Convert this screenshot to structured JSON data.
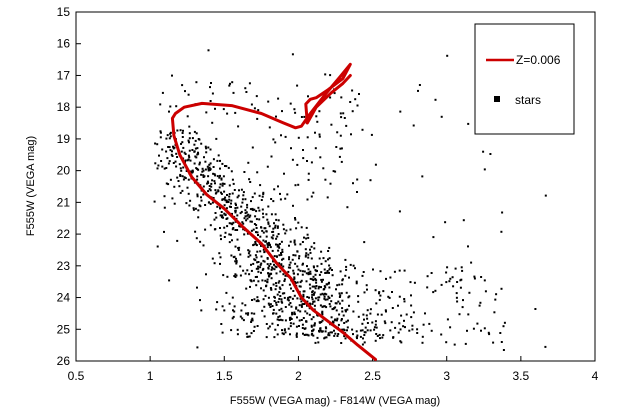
{
  "chart_data": {
    "type": "scatter",
    "xlabel": "F555W (VEGA mag) - F814W (VEGA mag)",
    "ylabel": "F555W   (VEGA mag)",
    "xlim": [
      0.5,
      4
    ],
    "ylim": [
      26,
      15
    ],
    "y_inverted": true,
    "xticks": [
      "0.5",
      "1",
      "1.5",
      "2",
      "2.5",
      "3",
      "3.5",
      "4"
    ],
    "yticks": [
      "15",
      "16",
      "17",
      "18",
      "19",
      "20",
      "21",
      "22",
      "23",
      "24",
      "25",
      "26"
    ],
    "grid": false,
    "legend_position": "top-right",
    "series": [
      {
        "name": "Z=0.006",
        "kind": "line",
        "color": "#cc0000",
        "x": [
          2.52,
          2.4,
          2.3,
          2.2,
          2.1,
          2.02,
          1.95,
          1.85,
          1.75,
          1.62,
          1.5,
          1.38,
          1.28,
          1.2,
          1.16,
          1.15,
          1.17,
          1.23,
          1.35,
          1.55,
          1.75,
          1.9,
          1.98,
          2.02,
          2.08,
          2.18,
          2.28,
          2.35,
          2.3,
          2.2,
          2.12,
          2.08,
          2.05,
          2.06,
          2.12,
          2.22,
          2.3,
          2.35
        ],
        "y": [
          25.95,
          25.5,
          25.1,
          24.75,
          24.4,
          24.0,
          23.4,
          22.9,
          22.3,
          21.75,
          21.2,
          20.75,
          20.2,
          19.5,
          18.9,
          18.35,
          18.2,
          18.0,
          17.88,
          17.95,
          18.2,
          18.5,
          18.65,
          18.6,
          18.2,
          17.6,
          17.05,
          16.65,
          17.1,
          17.45,
          17.7,
          17.75,
          17.9,
          18.5,
          18.0,
          17.55,
          17.25,
          17.0
        ]
      },
      {
        "name": "stars",
        "kind": "scatter",
        "color": "#000000",
        "generated_sample_count": 1400
      }
    ]
  },
  "legend": {
    "items": [
      {
        "label": "Z=0.006",
        "marker": "line",
        "color": "#cc0000"
      },
      {
        "label": "stars",
        "marker": "square",
        "color": "#000000"
      }
    ]
  }
}
